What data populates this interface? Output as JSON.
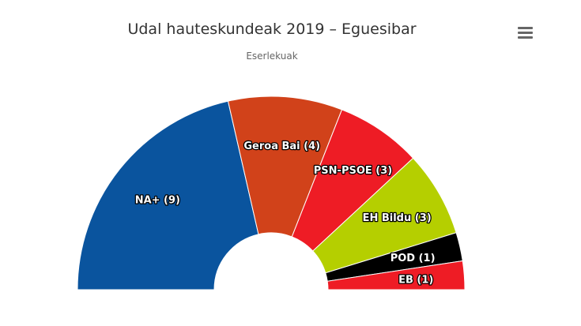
{
  "chart_data": {
    "type": "semicircle",
    "title": "Udal hauteskundeak 2019 – Eguesibar",
    "subtitle": "Eserlekuak",
    "values": [
      9,
      4,
      3,
      3,
      1,
      1
    ],
    "value_labels": [
      "NA+ (9)",
      "Geroa Bai (4)",
      "PSN-PSOE (3)",
      "EH Bildu (3)",
      "POD (1)",
      "EB (1)"
    ],
    "colors": [
      "#0a549e",
      "#d1421a",
      "#ee1c25",
      "#b5cf00",
      "#000000",
      "#ee1c25"
    ]
  }
}
